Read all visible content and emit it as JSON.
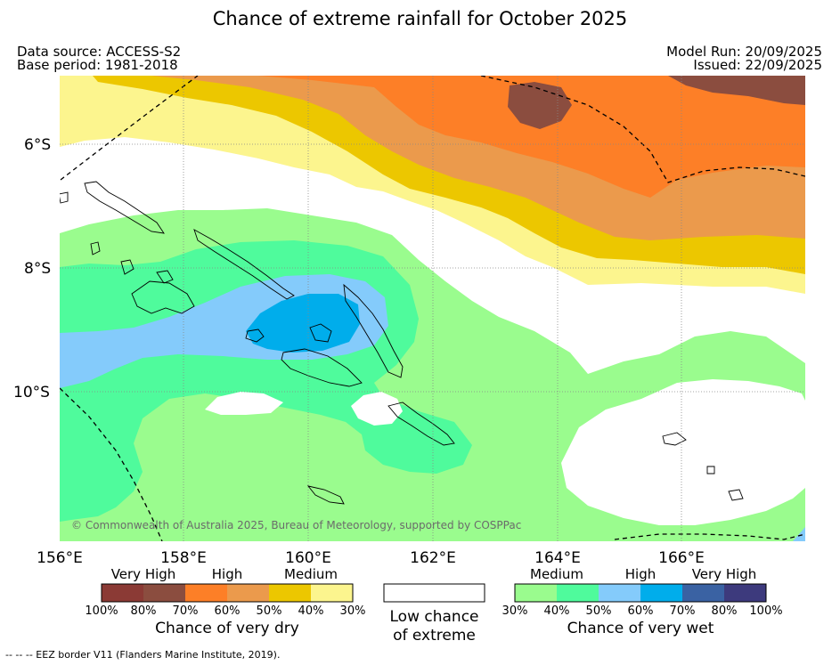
{
  "title": "Chance of extreme rainfall for October 2025",
  "meta": {
    "data_source": "Data source: ACCESS-S2",
    "base_period": "Base period: 1981-2018",
    "model_run": "Model Run: 20/09/2025",
    "issued": "Issued: 22/09/2025"
  },
  "map": {
    "lat_labels": [
      "6°S",
      "8°S",
      "10°S"
    ],
    "lon_labels": [
      "156°E",
      "158°E",
      "160°E",
      "162°E",
      "164°E",
      "166°E"
    ],
    "copyright": "© Commonwealth of Australia 2025, Bureau of Meteorology, supported by COSPPac",
    "colors": {
      "dry_very_high_1": "#8b3a35",
      "dry_very_high_2": "#8b4d3f",
      "dry_high_1": "#fd7f27",
      "dry_high_2": "#eb9a4c",
      "dry_medium_1": "#ecc700",
      "dry_medium_2": "#fcf58e",
      "wet_medium_1": "#9afc8e",
      "wet_medium_2": "#4ffb9c",
      "wet_high_1": "#84cbfb",
      "wet_high_2": "#00adeb",
      "wet_very_high_1": "#3a62a3",
      "wet_very_high_2": "#3d3a7d"
    }
  },
  "legend": {
    "dry": {
      "categories": [
        "Very High",
        "High",
        "Medium"
      ],
      "ticks": [
        "100%",
        "80%",
        "70%",
        "60%",
        "50%",
        "40%",
        "30%"
      ],
      "title": "Chance of very dry"
    },
    "low": {
      "line1": "Low chance",
      "line2": "of extreme"
    },
    "wet": {
      "categories": [
        "Medium",
        "High",
        "Very High"
      ],
      "ticks": [
        "30%",
        "40%",
        "50%",
        "60%",
        "70%",
        "80%",
        "100%"
      ],
      "title": "Chance of very wet"
    }
  },
  "footer": {
    "eez": "--  --  -- EEZ border V11 (Flanders Marine Institute, 2019)."
  }
}
